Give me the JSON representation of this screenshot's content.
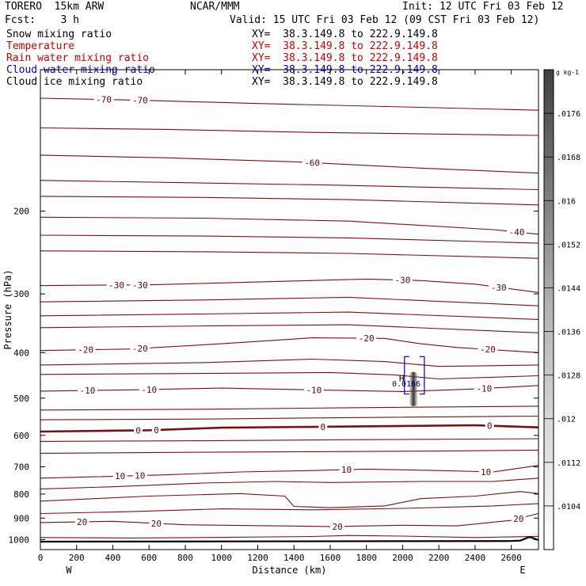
{
  "header": {
    "model": "TORERO  15km ARW",
    "center": "NCAR/MMM",
    "init": "Init: 12 UTC Fri 03 Feb 12",
    "fcst": "Fcst:    3 h",
    "valid": "Valid: 15 UTC Fri 03 Feb 12 (09 CST Fri 03 Feb 12)"
  },
  "fields": [
    {
      "name": "Snow mixing ratio",
      "color": "#000000",
      "xy": "XY=  38.3.149.8 to 222.9.149.8"
    },
    {
      "name": "Temperature",
      "color": "#cc0000",
      "xy": "XY=  38.3.149.8 to 222.9.149.8"
    },
    {
      "name": "Rain water mixing ratio",
      "color": "#cc0000",
      "xy": "XY=  38.3.149.8 to 222.9.149.8"
    },
    {
      "name": "Cloud water mixing ratio",
      "color": "#0000cc",
      "xy": "XY=  38.3.149.8 to 222.9.149.8"
    },
    {
      "name": "Cloud ice mixing ratio",
      "color": "#000000",
      "xy": "XY=  38.3.149.8 to 222.9.149.8"
    }
  ],
  "chart_data": {
    "type": "contour",
    "xlabel": "Distance (km)",
    "ylabel": "Pressure (hPa)",
    "xlim": [
      0,
      2750
    ],
    "ylim": [
      1050,
      100
    ],
    "y_scale": "log",
    "x_ticks": [
      0,
      200,
      400,
      600,
      800,
      1000,
      1200,
      1400,
      1600,
      1800,
      2000,
      2200,
      2400,
      2600
    ],
    "y_ticks": [
      200,
      300,
      400,
      500,
      600,
      700,
      800,
      900,
      1000
    ],
    "x_end_labels": [
      "W",
      "E"
    ],
    "colorbar": {
      "unit": "g kg-1",
      "tick_labels": [
        ".0104",
        ".0112",
        ".012",
        ".0128",
        ".0136",
        ".0144",
        ".0152",
        ".016",
        ".0168",
        ".0176"
      ],
      "range": [
        0.0096,
        0.0184
      ]
    },
    "line_color": "#7a1010",
    "isotherms": [
      {
        "label": "-70",
        "points": [
          [
            0,
            115
          ],
          [
            500,
            116
          ],
          [
            1200,
            118
          ],
          [
            2000,
            120
          ],
          [
            2750,
            122
          ]
        ],
        "labels_at": [
          350,
          550
        ]
      },
      {
        "label": "",
        "points": [
          [
            0,
            133
          ],
          [
            700,
            134
          ],
          [
            1500,
            136
          ],
          [
            2750,
            138
          ]
        ],
        "labels_at": []
      },
      {
        "label": "-60",
        "points": [
          [
            0,
            152
          ],
          [
            700,
            154
          ],
          [
            1400,
            157
          ],
          [
            2100,
            162
          ],
          [
            2750,
            166
          ]
        ],
        "labels_at": [
          1500
        ]
      },
      {
        "label": "",
        "points": [
          [
            0,
            172
          ],
          [
            800,
            174
          ],
          [
            1600,
            176
          ],
          [
            2750,
            180
          ]
        ],
        "labels_at": []
      },
      {
        "label": "",
        "points": [
          [
            0,
            186
          ],
          [
            900,
            187
          ],
          [
            1700,
            189
          ],
          [
            2750,
            194
          ]
        ],
        "labels_at": []
      },
      {
        "label": "-40",
        "points": [
          [
            0,
            206
          ],
          [
            900,
            207
          ],
          [
            1700,
            210
          ],
          [
            2500,
            219
          ],
          [
            2750,
            224
          ]
        ],
        "labels_at": [
          2630
        ]
      },
      {
        "label": "",
        "points": [
          [
            0,
            225
          ],
          [
            900,
            226
          ],
          [
            1700,
            228
          ],
          [
            2750,
            234
          ]
        ],
        "labels_at": []
      },
      {
        "label": "",
        "points": [
          [
            0,
            243
          ],
          [
            900,
            244
          ],
          [
            1700,
            246
          ],
          [
            2750,
            252
          ]
        ],
        "labels_at": []
      },
      {
        "label": "-30",
        "points": [
          [
            0,
            288
          ],
          [
            600,
            287
          ],
          [
            1200,
            283
          ],
          [
            1800,
            279
          ],
          [
            2100,
            281
          ],
          [
            2400,
            286
          ],
          [
            2750,
            298
          ]
        ],
        "labels_at": [
          420,
          550,
          2000,
          2530
        ]
      },
      {
        "label": "",
        "points": [
          [
            0,
            312
          ],
          [
            900,
            309
          ],
          [
            1700,
            305
          ],
          [
            2750,
            318
          ]
        ],
        "labels_at": []
      },
      {
        "label": "",
        "points": [
          [
            0,
            334
          ],
          [
            900,
            331
          ],
          [
            1700,
            328
          ],
          [
            2750,
            340
          ]
        ],
        "labels_at": []
      },
      {
        "label": "",
        "points": [
          [
            0,
            354
          ],
          [
            900,
            351
          ],
          [
            1700,
            349
          ],
          [
            2750,
            363
          ]
        ],
        "labels_at": []
      },
      {
        "label": "-20",
        "points": [
          [
            0,
            396
          ],
          [
            500,
            393
          ],
          [
            1000,
            383
          ],
          [
            1500,
            372
          ],
          [
            1900,
            373
          ],
          [
            2100,
            383
          ],
          [
            2300,
            390
          ],
          [
            2750,
            400
          ]
        ],
        "labels_at": [
          250,
          550,
          1800,
          2470
        ]
      },
      {
        "label": "",
        "points": [
          [
            0,
            425
          ],
          [
            900,
            420
          ],
          [
            1500,
            413
          ],
          [
            1900,
            418
          ],
          [
            2200,
            428
          ],
          [
            2750,
            425
          ]
        ],
        "labels_at": []
      },
      {
        "label": "",
        "points": [
          [
            0,
            445
          ],
          [
            900,
            443
          ],
          [
            1600,
            441
          ],
          [
            1950,
            446
          ],
          [
            2200,
            455
          ],
          [
            2750,
            448
          ]
        ],
        "labels_at": []
      },
      {
        "label": "-10",
        "points": [
          [
            0,
            483
          ],
          [
            500,
            480
          ],
          [
            1000,
            476
          ],
          [
            1500,
            480
          ],
          [
            2000,
            484
          ],
          [
            2400,
            478
          ],
          [
            2750,
            470
          ]
        ],
        "labels_at": [
          260,
          600,
          1510,
          2450
        ]
      },
      {
        "label": "",
        "points": [
          [
            0,
            530
          ],
          [
            900,
            528
          ],
          [
            1700,
            524
          ],
          [
            2750,
            520
          ]
        ],
        "labels_at": []
      },
      {
        "label": "",
        "points": [
          [
            0,
            556
          ],
          [
            900,
            554
          ],
          [
            1700,
            550
          ],
          [
            2750,
            546
          ]
        ],
        "labels_at": []
      },
      {
        "label": "0",
        "points": [
          [
            0,
            589
          ],
          [
            600,
            585
          ],
          [
            1000,
            578
          ],
          [
            1600,
            575
          ],
          [
            2000,
            573
          ],
          [
            2400,
            571
          ],
          [
            2750,
            577
          ]
        ],
        "labels_at": [
          540,
          640,
          1560,
          2480
        ],
        "bold": true
      },
      {
        "label": "",
        "points": [
          [
            0,
            618
          ],
          [
            900,
            616
          ],
          [
            1700,
            613
          ],
          [
            2750,
            610
          ]
        ],
        "labels_at": []
      },
      {
        "label": "",
        "points": [
          [
            0,
            655
          ],
          [
            800,
            652
          ],
          [
            1500,
            650
          ],
          [
            2200,
            648
          ],
          [
            2750,
            645
          ]
        ],
        "labels_at": []
      },
      {
        "label": "10",
        "points": [
          [
            0,
            740
          ],
          [
            300,
            735
          ],
          [
            700,
            728
          ],
          [
            1100,
            718
          ],
          [
            1500,
            713
          ],
          [
            1800,
            708
          ],
          [
            2200,
            713
          ],
          [
            2500,
            718
          ],
          [
            2750,
            695
          ]
        ],
        "labels_at": [
          440,
          550,
          1690,
          2460
        ]
      },
      {
        "label": "",
        "points": [
          [
            0,
            780
          ],
          [
            400,
            772
          ],
          [
            900,
            758
          ],
          [
            1300,
            752
          ],
          [
            1600,
            756
          ],
          [
            2100,
            752
          ],
          [
            2500,
            752
          ],
          [
            2750,
            740
          ]
        ],
        "labels_at": []
      },
      {
        "label": "",
        "points": [
          [
            0,
            828
          ],
          [
            600,
            808
          ],
          [
            1100,
            798
          ],
          [
            1350,
            808
          ],
          [
            1400,
            850
          ],
          [
            1600,
            855
          ],
          [
            1900,
            848
          ],
          [
            2100,
            818
          ],
          [
            2400,
            808
          ],
          [
            2650,
            790
          ],
          [
            2750,
            798
          ]
        ],
        "labels_at": []
      },
      {
        "label": "",
        "points": [
          [
            0,
            880
          ],
          [
            500,
            872
          ],
          [
            1000,
            860
          ],
          [
            1500,
            864
          ],
          [
            2000,
            858
          ],
          [
            2500,
            848
          ],
          [
            2750,
            838
          ]
        ],
        "labels_at": []
      },
      {
        "label": "20",
        "points": [
          [
            0,
            920
          ],
          [
            400,
            914
          ],
          [
            800,
            930
          ],
          [
            1200,
            934
          ],
          [
            1600,
            938
          ],
          [
            2000,
            932
          ],
          [
            2300,
            935
          ],
          [
            2600,
            910
          ],
          [
            2750,
            880
          ]
        ],
        "labels_at": [
          230,
          640,
          1640,
          2640
        ]
      },
      {
        "label": "",
        "points": [
          [
            0,
            990
          ],
          [
            500,
            992
          ],
          [
            1000,
            989
          ],
          [
            1500,
            985
          ],
          [
            1700,
            980
          ],
          [
            2000,
            983
          ],
          [
            2400,
            990
          ],
          [
            2750,
            984
          ]
        ],
        "labels_at": []
      }
    ],
    "ground": {
      "points": [
        [
          0,
          1010
        ],
        [
          1000,
          1009
        ],
        [
          2600,
          1007
        ],
        [
          2650,
          1005
        ],
        [
          2700,
          987
        ],
        [
          2750,
          1002
        ]
      ]
    },
    "high_marker": {
      "label": "H",
      "x": 1980,
      "y": 460
    },
    "feature_label": {
      "text": "0.0166",
      "x": 2020,
      "y": 465
    },
    "cloud_box": {
      "x0": 2010,
      "x1": 2120,
      "p_top": 408,
      "p_bottom": 490
    },
    "shaded_column": {
      "x": 2060,
      "p_top": 440,
      "p_bottom": 520
    }
  }
}
